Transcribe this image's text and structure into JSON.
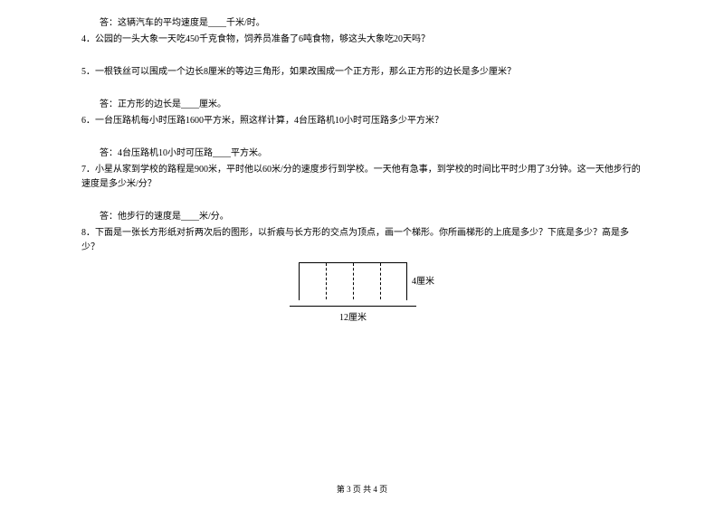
{
  "content": {
    "q3_answer": "答：这辆汽车的平均速度是____千米/时。",
    "q4": "4．公园的一头大象一天吃450千克食物，饲养员准备了6吨食物，够这头大象吃20天吗？",
    "q5": "5．一根铁丝可以围成一个边长8厘米的等边三角形，如果改围成一个正方形，那么正方形的边长是多少厘米？",
    "q5_answer": "答：正方形的边长是____厘米。",
    "q6": "6．一台压路机每小时压路1600平方米，照这样计算，4台压路机10小时可压路多少平方米？",
    "q6_answer": "答：4台压路机10小时可压路____平方米。",
    "q7": "7．小星从家到学校的路程是900米，平时他以60米/分的速度步行到学校。一天他有急事，到学校的时间比平时少用了3分钟。这一天他步行的速度是多少米/分？",
    "q7_answer": "答：他步行的速度是____米/分。",
    "q8": "8．下面是一张长方形纸对折两次后的图形，以折痕与长方形的交点为顶点，画一个梯形。你所画梯形的上底是多少？下底是多少？高是多少？"
  },
  "diagram": {
    "height_label": "4厘米",
    "width_label": "12厘米"
  },
  "footer": {
    "text": "第 3 页 共 4 页"
  }
}
